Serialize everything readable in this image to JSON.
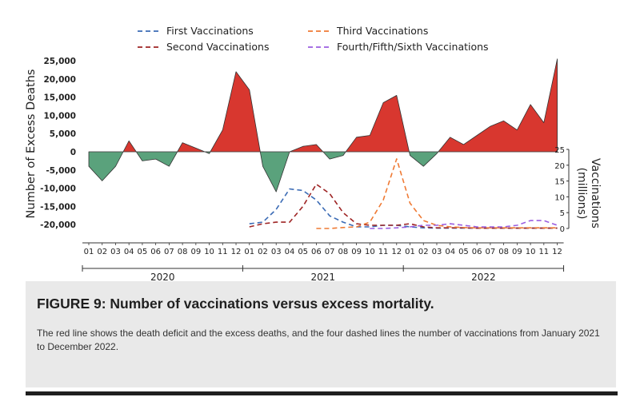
{
  "colors": {
    "excess_positive": "#d8372f",
    "excess_negative": "#5aa27c",
    "first": "#3b6bb5",
    "second": "#9e2424",
    "third": "#ef7a34",
    "fourth": "#9b5fe0",
    "axis": "#333333"
  },
  "chart_data": {
    "type": "area",
    "x": [
      "2020-01",
      "2020-02",
      "2020-03",
      "2020-04",
      "2020-05",
      "2020-06",
      "2020-07",
      "2020-08",
      "2020-09",
      "2020-10",
      "2020-11",
      "2020-12",
      "2021-01",
      "2021-02",
      "2021-03",
      "2021-04",
      "2021-05",
      "2021-06",
      "2021-07",
      "2021-08",
      "2021-09",
      "2021-10",
      "2021-11",
      "2021-12",
      "2022-01",
      "2022-02",
      "2022-03",
      "2022-04",
      "2022-05",
      "2022-06",
      "2022-07",
      "2022-08",
      "2022-09",
      "2022-10",
      "2022-11",
      "2022-12"
    ],
    "month_ticks": [
      "01",
      "02",
      "03",
      "04",
      "05",
      "06",
      "07",
      "08",
      "09",
      "10",
      "11",
      "12",
      "01",
      "02",
      "03",
      "04",
      "05",
      "06",
      "07",
      "08",
      "09",
      "10",
      "11",
      "12",
      "01",
      "02",
      "03",
      "04",
      "05",
      "06",
      "07",
      "08",
      "09",
      "10",
      "11",
      "12"
    ],
    "years": [
      "2020",
      "2021",
      "2022"
    ],
    "excess_deaths": {
      "ylabel": "Number of Excess Deaths",
      "ylim": [
        -20000,
        25000
      ],
      "yticks": [
        -20000,
        -15000,
        -10000,
        -5000,
        0,
        5000,
        10000,
        15000,
        20000,
        25000
      ],
      "ytick_labels": [
        "-20,000",
        "-15,000",
        "-10,000",
        "-5,000",
        "0",
        "5,000",
        "10,000",
        "15,000",
        "20,000",
        "25,000"
      ],
      "values": [
        -4000,
        -8000,
        -4000,
        3000,
        -2500,
        -2000,
        -4000,
        2500,
        1000,
        -500,
        6000,
        22000,
        17000,
        -4000,
        -11000,
        0,
        1500,
        2000,
        -2000,
        -1000,
        4000,
        4500,
        13500,
        15500,
        -1000,
        -4000,
        -500,
        4000,
        2000,
        4500,
        7000,
        8500,
        6000,
        13000,
        8000,
        25500
      ]
    },
    "vaccinations": {
      "ylabel": "Vaccinations (millions)",
      "ylim": [
        0,
        25
      ],
      "yticks": [
        0,
        5,
        10,
        15,
        20,
        25
      ],
      "series": [
        {
          "name": "First Vaccinations",
          "color_key": "first",
          "values": [
            null,
            null,
            null,
            null,
            null,
            null,
            null,
            null,
            null,
            null,
            null,
            null,
            1.5,
            2,
            6,
            12.5,
            12,
            9,
            4,
            2,
            0.5,
            0.5,
            1,
            1,
            0.5,
            0.2,
            0.1,
            0.1,
            0.1,
            0.1,
            0.1,
            0.1,
            0.1,
            0.1,
            0.1,
            0.1
          ]
        },
        {
          "name": "Second Vaccinations",
          "color_key": "second",
          "values": [
            null,
            null,
            null,
            null,
            null,
            null,
            null,
            null,
            null,
            null,
            null,
            null,
            0.5,
            1.5,
            2,
            2,
            7,
            14,
            11,
            5,
            1.5,
            1,
            1,
            1,
            1.5,
            0.5,
            0.2,
            0.2,
            0.2,
            0.1,
            0.1,
            0.1,
            0.1,
            0.1,
            0.1,
            0.1
          ]
        },
        {
          "name": "Third Vaccinations",
          "color_key": "third",
          "values": [
            null,
            null,
            null,
            null,
            null,
            null,
            null,
            null,
            null,
            null,
            null,
            null,
            null,
            null,
            null,
            null,
            null,
            0,
            0,
            0.3,
            0.5,
            2,
            9,
            22,
            8,
            2.5,
            1,
            0.5,
            0.3,
            0.2,
            0.2,
            0.2,
            0.2,
            0.2,
            0.2,
            0.2
          ]
        },
        {
          "name": "Fourth/Fifth/Sixth Vaccinations",
          "color_key": "fourth",
          "values": [
            null,
            null,
            null,
            null,
            null,
            null,
            null,
            null,
            null,
            null,
            null,
            null,
            null,
            null,
            null,
            null,
            null,
            null,
            null,
            null,
            null,
            0,
            0,
            0.2,
            0.5,
            1,
            1,
            1.5,
            1,
            0.5,
            0.5,
            0.5,
            1,
            2.5,
            2.5,
            1
          ]
        }
      ]
    },
    "legend": {
      "placement": "top"
    }
  },
  "caption": {
    "title": "FIGURE 9: Number of vaccinations versus excess mortality.",
    "text": "The red line shows the death deficit and the excess deaths, and the four dashed lines the number of vaccinations from January 2021 to December 2022."
  }
}
